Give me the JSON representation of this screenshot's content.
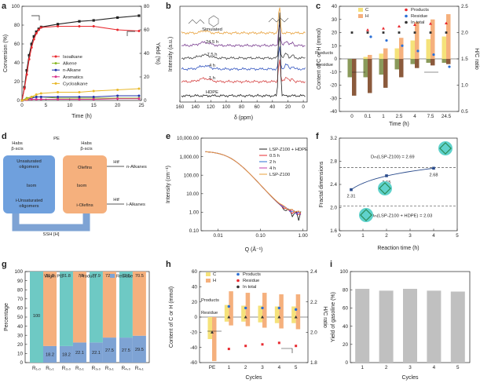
{
  "panels": {
    "a": {
      "label": "a",
      "type": "line",
      "xlabel": "Time (h)",
      "ylabel": "Conversion (%)",
      "y2label": "Yield (%)",
      "xlim": [
        0,
        25
      ],
      "ylim": [
        0,
        100
      ],
      "y2lim": [
        0,
        80
      ],
      "xticks": [
        0,
        5,
        10,
        15,
        20,
        25
      ],
      "yticks": [
        0,
        20,
        40,
        60,
        80,
        100
      ],
      "y2ticks": [
        0,
        20,
        40,
        60,
        80
      ],
      "series": [
        {
          "name": "Conversion",
          "axis": "left",
          "color": "#222222",
          "marker": "square",
          "x": [
            0,
            0.5,
            1,
            1.5,
            2,
            2.5,
            3,
            3.5,
            4,
            7.5,
            12,
            15,
            20,
            24.5
          ],
          "y": [
            0,
            14,
            32,
            48,
            60,
            68,
            73,
            76,
            78,
            81,
            84,
            85,
            88,
            90
          ]
        },
        {
          "name": "Isoalkane",
          "axis": "right",
          "color": "#e8292f",
          "x": [
            0,
            0.5,
            1,
            1.5,
            2,
            2.5,
            3,
            3.5,
            4,
            7.5,
            12,
            15,
            20,
            24.5
          ],
          "y": [
            0,
            10,
            22,
            35,
            45,
            52,
            57,
            60,
            62,
            63,
            63,
            63,
            60,
            59
          ]
        },
        {
          "name": "Alkene",
          "axis": "right",
          "color": "#8ab925",
          "x": [
            0,
            1,
            2,
            3,
            4,
            7.5,
            12,
            15,
            20,
            24.5
          ],
          "y": [
            0,
            2,
            3,
            3,
            3,
            2,
            2,
            2,
            2,
            2
          ]
        },
        {
          "name": "n-Alkane",
          "axis": "right",
          "color": "#2233aa",
          "x": [
            0,
            1,
            2,
            3,
            4,
            7.5,
            12,
            15,
            20,
            24.5
          ],
          "y": [
            0,
            1,
            2,
            3,
            3,
            3,
            3,
            3,
            4,
            4
          ]
        },
        {
          "name": "Aromatics",
          "axis": "right",
          "color": "#d9338a",
          "x": [
            0,
            1,
            2,
            3,
            4,
            7.5,
            12,
            15,
            20,
            24.5
          ],
          "y": [
            0,
            0.5,
            1,
            1,
            1,
            1,
            1,
            1,
            1.5,
            1.5
          ]
        },
        {
          "name": "Cycloalkane",
          "axis": "right",
          "color": "#e8b82a",
          "x": [
            0,
            1,
            2,
            3,
            4,
            7.5,
            12,
            15,
            20,
            24.5
          ],
          "y": [
            0,
            1,
            3,
            5,
            6,
            7,
            7,
            8,
            9,
            10
          ]
        }
      ]
    },
    "b": {
      "label": "b",
      "type": "line",
      "xlabel": "δ (ppm)",
      "ylabel": "Intensity (a.u.)",
      "xticks": [
        160,
        140,
        120,
        100,
        80,
        60,
        40,
        20,
        0
      ],
      "traces": [
        {
          "name": "Simulated",
          "color": "#e8a03a"
        },
        {
          "name": "24.5 h",
          "color": "#7b3f91"
        },
        {
          "name": "7.5 h",
          "color": "#444444"
        },
        {
          "name": "4 h",
          "color": "#3355c0"
        },
        {
          "name": "1 h",
          "color": "#d64545"
        },
        {
          "name": "HDPE",
          "color": "#222222"
        }
      ]
    },
    "c": {
      "label": "c",
      "type": "bar",
      "xlabel": "Time (h)",
      "ylabel": "Content of C or H (mmol)",
      "y2label": "H/C ratio",
      "categories": [
        "0",
        "0.1",
        "1",
        "2.5",
        "4",
        "7.5",
        "24.5"
      ],
      "ylim": [
        -40,
        40
      ],
      "y2lim": [
        0.5,
        2.5
      ],
      "yticks": [
        -40,
        -30,
        -20,
        -10,
        0,
        10,
        20,
        30,
        40
      ],
      "y2ticks": [
        0.5,
        1.0,
        1.5,
        2.0,
        2.5
      ],
      "region_labels": [
        "Products",
        "Residue"
      ],
      "legend": [
        {
          "name": "C",
          "color": "#f5e27a"
        },
        {
          "name": "H",
          "color": "#f5b07d"
        },
        {
          "name": "Products",
          "color": "#e8292f"
        },
        {
          "name": "Residue",
          "color": "#2b6fd6"
        },
        {
          "name": "In total",
          "color": "#333333"
        }
      ],
      "series": [
        {
          "name": "C products",
          "values": [
            0,
            1.5,
            4,
            8,
            14,
            15,
            17
          ]
        },
        {
          "name": "H products",
          "values": [
            0,
            3,
            8,
            16,
            28,
            30,
            34
          ]
        },
        {
          "name": "C residue",
          "values": [
            -14,
            -14,
            -12,
            -8,
            -4,
            -3,
            -3
          ]
        },
        {
          "name": "H residue",
          "values": [
            -28,
            -26,
            -22,
            -14,
            -7,
            -5,
            -4
          ]
        },
        {
          "name": "H/C products",
          "values": [
            null,
            2.05,
            2.08,
            2.12,
            2.15,
            2.17,
            2.18
          ]
        },
        {
          "name": "H/C residue",
          "values": [
            null,
            1.92,
            1.85,
            1.75,
            1.65,
            1.58,
            1.35
          ]
        },
        {
          "name": "H/C total",
          "values": [
            2.0,
            2.0,
            2.0,
            2.0,
            2.0,
            2.0,
            2.0
          ]
        }
      ]
    },
    "d": {
      "label": "d",
      "pe": "PE",
      "habs_left": "Habs\nβ-scis",
      "habs_right": "Habs\nβ-scis",
      "unsat": "Unsaturated\noligomers",
      "isom_left": "Isom",
      "i_unsat": "i-Unsaturated\noligomers",
      "olefins": "Olefins",
      "isom_right": "Isom",
      "i_olefins": "i-Olefins",
      "htf1": "Htf",
      "htf2": "Htf",
      "n_alkanes": "n-Alkanes",
      "i_alkanes": "i-Alkanes",
      "ssh": "SSH [H]"
    },
    "e": {
      "label": "e",
      "type": "line",
      "xlabel": "Q (Å⁻¹)",
      "ylabel": "Intensity (cm⁻¹)",
      "xticks": [
        "0.01",
        "0.10",
        "1.00"
      ],
      "yticks": [
        "10,000.00",
        "1,000.00",
        "100.00",
        "10.00",
        "1.00",
        "0.10"
      ],
      "legend": [
        {
          "name": "LSP-Z100 + HDPE",
          "color": "#222222"
        },
        {
          "name": "0.5 h",
          "color": "#e8292f"
        },
        {
          "name": "2 h",
          "color": "#2b6fd6"
        },
        {
          "name": "4 h",
          "color": "#c03aa8"
        },
        {
          "name": "LSP-Z100",
          "color": "#e8a03a"
        }
      ]
    },
    "f": {
      "label": "f",
      "type": "scatter",
      "xlabel": "Reaction time (h)",
      "ylabel": "Fractal dimensions",
      "xlim": [
        0,
        5
      ],
      "ylim": [
        1.6,
        3.2
      ],
      "xticks": [
        0,
        1,
        2,
        3,
        4,
        5
      ],
      "yticks": [
        1.6,
        2.0,
        2.4,
        2.8,
        3.2
      ],
      "points": [
        {
          "x": 0.5,
          "y": 2.31,
          "label": "2.31"
        },
        {
          "x": 2,
          "y": 2.55,
          "label": "2.55"
        },
        {
          "x": 4,
          "y": 2.68,
          "label": "2.68"
        }
      ],
      "ref_upper": {
        "y": 2.69,
        "label": "Dₘ(LSP-Z100) = 2.69"
      },
      "ref_lower": {
        "y": 2.03,
        "label": "Dₘ(LSP-Z100 + HDPE) = 2.03"
      }
    },
    "g": {
      "label": "g",
      "type": "bar",
      "ylabel": "Percentage",
      "categories": [
        "R₁,₀",
        "R₁,₁",
        "R₂,₀",
        "R₂,₁",
        "R₃,₀",
        "R₃,₁",
        "R₄,₀",
        "R₄,₁"
      ],
      "ylim": [
        0,
        100
      ],
      "yticks": [
        0,
        10,
        20,
        30,
        40,
        50,
        60,
        70,
        80,
        90,
        100
      ],
      "legend": [
        {
          "name": "Virgin PE",
          "color": "#6ec9c4"
        },
        {
          "name": "Product",
          "color": "#f5b07d"
        },
        {
          "name": "Residue",
          "color": "#7ea3d4"
        }
      ],
      "series": [
        {
          "name": "Virgin PE",
          "values": [
            100,
            0,
            81.8,
            0,
            77.9,
            0,
            72.5,
            0
          ]
        },
        {
          "name": "Product",
          "values": [
            0,
            81.8,
            0,
            77.9,
            0,
            72.5,
            0,
            70.5
          ]
        },
        {
          "name": "Residue",
          "values": [
            0,
            18.2,
            18.2,
            22.1,
            22.1,
            27.5,
            27.5,
            29.5
          ]
        }
      ],
      "data_labels": [
        [
          "100",
          "",
          ""
        ],
        [
          "81.8",
          "",
          "18.2"
        ],
        [
          "81.8",
          "",
          "18.2"
        ],
        [
          "77.9",
          "",
          "22.1"
        ],
        [
          "77.9",
          "",
          "22.1"
        ],
        [
          "72.5",
          "",
          "27.5"
        ],
        [
          "72.5",
          "",
          "27.5"
        ],
        [
          "70.5",
          "",
          "29.5"
        ]
      ]
    },
    "h": {
      "label": "h",
      "type": "bar",
      "xlabel": "Cycles",
      "ylabel": "Content of C or H (mmol)",
      "y2label": "H/C ratio",
      "categories": [
        "PE",
        "1",
        "2",
        "3",
        "4",
        "5"
      ],
      "ylim": [
        -60,
        60
      ],
      "y2lim": [
        1.8,
        2.4
      ],
      "yticks": [
        -60,
        -40,
        -20,
        0,
        20,
        40,
        60
      ],
      "y2ticks": [
        1.8,
        2.0,
        2.2,
        2.4
      ],
      "region_labels": [
        "Products",
        "Residue"
      ],
      "legend": [
        {
          "name": "C",
          "color": "#f5e27a"
        },
        {
          "name": "H",
          "color": "#f5b07d"
        },
        {
          "name": "Products",
          "color": "#2b6fd6"
        },
        {
          "name": "Residue",
          "color": "#e8292f"
        },
        {
          "name": "In total",
          "color": "#333333"
        }
      ],
      "series": [
        {
          "name": "C products",
          "values": [
            0,
            16,
            15,
            15,
            14,
            14
          ]
        },
        {
          "name": "H products",
          "values": [
            0,
            34,
            32,
            32,
            30,
            30
          ]
        },
        {
          "name": "C residue",
          "values": [
            -29,
            -6,
            -6,
            -7,
            -8,
            -8
          ]
        },
        {
          "name": "H residue",
          "values": [
            -58,
            -11,
            -12,
            -14,
            -15,
            -16
          ]
        },
        {
          "name": "H/C products",
          "values": [
            null,
            2.17,
            2.16,
            2.16,
            2.16,
            2.15
          ]
        },
        {
          "name": "H/C residue",
          "values": [
            null,
            1.89,
            1.91,
            1.92,
            1.93,
            1.91
          ]
        },
        {
          "name": "H/C total",
          "values": [
            2.0,
            2.1,
            2.1,
            2.1,
            2.1,
            2.1
          ]
        }
      ]
    },
    "i": {
      "label": "i",
      "type": "bar",
      "xlabel": "Cycles",
      "ylabel": "Yield of gasoline (%)",
      "categories": [
        "1",
        "2",
        "3",
        "4",
        "5"
      ],
      "values": [
        81,
        79,
        81,
        79,
        78
      ],
      "ylim": [
        0,
        100
      ],
      "yticks": [
        0,
        20,
        40,
        60,
        80,
        100
      ],
      "color": "#c0c0c0"
    }
  }
}
